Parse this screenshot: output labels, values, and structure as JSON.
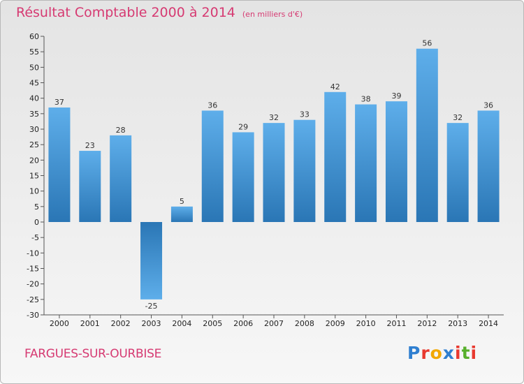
{
  "header": {
    "title": "Résultat Comptable 2000 à 2014",
    "subtitle": "(en milliers d'€)"
  },
  "footer": {
    "commune": "FARGUES-SUR-OURBISE",
    "brand": "Proxiti",
    "brand_letters": [
      {
        "ch": "P",
        "color": "#2f7fd0"
      },
      {
        "ch": "r",
        "color": "#e8392f"
      },
      {
        "ch": "o",
        "color": "#f2a800"
      },
      {
        "ch": "x",
        "color": "#2f7fd0"
      },
      {
        "ch": "i",
        "color": "#e8392f"
      },
      {
        "ch": "t",
        "color": "#57b02c"
      },
      {
        "ch": "i",
        "color": "#e8392f"
      }
    ]
  },
  "colors": {
    "title": "#d63a72",
    "bar_light": "#5eaeea",
    "bar_dark": "#2a76b5"
  },
  "chart_data": {
    "type": "bar",
    "title": "Résultat Comptable 2000 à 2014",
    "subtitle": "(en milliers d'€)",
    "xlabel": "",
    "ylabel": "",
    "ylim": [
      -30,
      60
    ],
    "ytick_step": 5,
    "grid": false,
    "categories": [
      "2000",
      "2001",
      "2002",
      "2003",
      "2004",
      "2005",
      "2006",
      "2007",
      "2008",
      "2009",
      "2010",
      "2011",
      "2012",
      "2013",
      "2014"
    ],
    "values": [
      37,
      23,
      28,
      -25,
      5,
      36,
      29,
      32,
      33,
      42,
      38,
      39,
      56,
      32,
      36
    ]
  }
}
